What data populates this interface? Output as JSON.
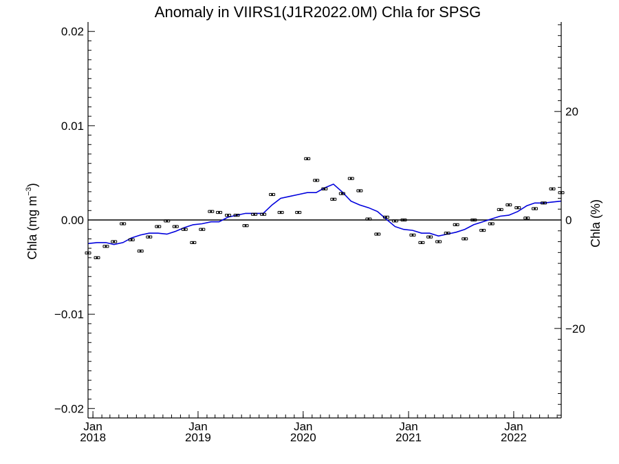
{
  "chart_data": {
    "type": "scatter",
    "title": "Anomaly in VIIRS1(J1R2022.0M) Chla for SPSG",
    "ylabel_left": {
      "text": "Chla (mg m",
      "sup": "−3",
      "close": ")"
    },
    "ylabel_right": "Chla (%)",
    "x_start": "2017-12-15",
    "x_end": "2022-06-15",
    "ylim": [
      -0.021,
      0.021
    ],
    "ylim_right": [
      -36.5,
      36.5
    ],
    "y_ticks": [
      {
        "value": -0.02,
        "label": "−0.02"
      },
      {
        "value": -0.01,
        "label": "−0.01"
      },
      {
        "value": 0.0,
        "label": "0.00"
      },
      {
        "value": 0.01,
        "label": "0.01"
      },
      {
        "value": 0.02,
        "label": "0.02"
      }
    ],
    "y_ticks_right": [
      {
        "value": -20,
        "label": "−20"
      },
      {
        "value": 0,
        "label": "0"
      },
      {
        "value": 20,
        "label": "20"
      }
    ],
    "x_ticks": [
      {
        "date": "2018-01-01",
        "month": "Jan",
        "year": "2018"
      },
      {
        "date": "2019-01-01",
        "month": "Jan",
        "year": "2019"
      },
      {
        "date": "2020-01-01",
        "month": "Jan",
        "year": "2020"
      },
      {
        "date": "2021-01-01",
        "month": "Jan",
        "year": "2021"
      },
      {
        "date": "2022-01-01",
        "month": "Jan",
        "year": "2022"
      }
    ],
    "zero_line": 0.0,
    "points": [
      {
        "date": "2017-12-15",
        "y": -0.0035
      },
      {
        "date": "2018-01-15",
        "y": -0.004
      },
      {
        "date": "2018-02-15",
        "y": -0.0028
      },
      {
        "date": "2018-03-15",
        "y": -0.0023
      },
      {
        "date": "2018-04-15",
        "y": -0.0004
      },
      {
        "date": "2018-05-15",
        "y": -0.0021
      },
      {
        "date": "2018-06-15",
        "y": -0.0033
      },
      {
        "date": "2018-07-15",
        "y": -0.0018
      },
      {
        "date": "2018-08-15",
        "y": -0.0007
      },
      {
        "date": "2018-09-15",
        "y": -0.0001
      },
      {
        "date": "2018-10-15",
        "y": -0.0007
      },
      {
        "date": "2018-11-15",
        "y": -0.001
      },
      {
        "date": "2018-12-15",
        "y": -0.0024
      },
      {
        "date": "2019-01-15",
        "y": -0.001
      },
      {
        "date": "2019-02-15",
        "y": 0.0009
      },
      {
        "date": "2019-03-15",
        "y": 0.0008
      },
      {
        "date": "2019-04-15",
        "y": 0.0005
      },
      {
        "date": "2019-05-15",
        "y": 0.0005
      },
      {
        "date": "2019-06-15",
        "y": -0.0006
      },
      {
        "date": "2019-07-15",
        "y": 0.0006
      },
      {
        "date": "2019-08-15",
        "y": 0.0006
      },
      {
        "date": "2019-09-15",
        "y": 0.0027
      },
      {
        "date": "2019-10-15",
        "y": 0.0008
      },
      {
        "date": "2019-12-15",
        "y": 0.0008
      },
      {
        "date": "2020-01-15",
        "y": 0.0065
      },
      {
        "date": "2020-02-15",
        "y": 0.0042
      },
      {
        "date": "2020-03-15",
        "y": 0.0033
      },
      {
        "date": "2020-04-15",
        "y": 0.0022
      },
      {
        "date": "2020-05-15",
        "y": 0.0028
      },
      {
        "date": "2020-06-15",
        "y": 0.0044
      },
      {
        "date": "2020-07-15",
        "y": 0.0031
      },
      {
        "date": "2020-08-15",
        "y": 0.0001
      },
      {
        "date": "2020-09-15",
        "y": -0.0015
      },
      {
        "date": "2020-10-15",
        "y": 0.0003
      },
      {
        "date": "2020-11-15",
        "y": -0.0001
      },
      {
        "date": "2020-12-15",
        "y": 0.0
      },
      {
        "date": "2021-01-15",
        "y": -0.0016
      },
      {
        "date": "2021-02-15",
        "y": -0.0024
      },
      {
        "date": "2021-03-15",
        "y": -0.0018
      },
      {
        "date": "2021-04-15",
        "y": -0.0023
      },
      {
        "date": "2021-05-15",
        "y": -0.0014
      },
      {
        "date": "2021-06-15",
        "y": -0.0005
      },
      {
        "date": "2021-07-15",
        "y": -0.002
      },
      {
        "date": "2021-08-15",
        "y": 0.0
      },
      {
        "date": "2021-09-15",
        "y": -0.0011
      },
      {
        "date": "2021-10-15",
        "y": -0.0004
      },
      {
        "date": "2021-11-15",
        "y": 0.0011
      },
      {
        "date": "2021-12-15",
        "y": 0.0016
      },
      {
        "date": "2022-01-15",
        "y": 0.0013
      },
      {
        "date": "2022-02-15",
        "y": 0.0002
      },
      {
        "date": "2022-03-15",
        "y": 0.0012
      },
      {
        "date": "2022-04-15",
        "y": 0.0018
      },
      {
        "date": "2022-05-15",
        "y": 0.0033
      },
      {
        "date": "2022-06-15",
        "y": 0.0029
      }
    ],
    "trend_line": [
      {
        "date": "2017-12-15",
        "y": -0.0025
      },
      {
        "date": "2018-01-15",
        "y": -0.0024
      },
      {
        "date": "2018-02-15",
        "y": -0.0024
      },
      {
        "date": "2018-03-15",
        "y": -0.0026
      },
      {
        "date": "2018-04-15",
        "y": -0.0024
      },
      {
        "date": "2018-05-15",
        "y": -0.0019
      },
      {
        "date": "2018-06-15",
        "y": -0.0016
      },
      {
        "date": "2018-07-15",
        "y": -0.0014
      },
      {
        "date": "2018-08-15",
        "y": -0.0014
      },
      {
        "date": "2018-09-15",
        "y": -0.0015
      },
      {
        "date": "2018-10-15",
        "y": -0.0012
      },
      {
        "date": "2018-11-15",
        "y": -0.0008
      },
      {
        "date": "2018-12-15",
        "y": -0.0005
      },
      {
        "date": "2019-01-15",
        "y": -0.0004
      },
      {
        "date": "2019-02-15",
        "y": -0.0002
      },
      {
        "date": "2019-03-15",
        "y": -0.0002
      },
      {
        "date": "2019-04-15",
        "y": 0.0003
      },
      {
        "date": "2019-05-15",
        "y": 0.0005
      },
      {
        "date": "2019-06-15",
        "y": 0.0007
      },
      {
        "date": "2019-07-15",
        "y": 0.0007
      },
      {
        "date": "2019-08-15",
        "y": 0.0007
      },
      {
        "date": "2019-09-15",
        "y": 0.0016
      },
      {
        "date": "2019-10-15",
        "y": 0.0023
      },
      {
        "date": "2019-11-15",
        "y": 0.0025
      },
      {
        "date": "2019-12-15",
        "y": 0.0027
      },
      {
        "date": "2020-01-15",
        "y": 0.0029
      },
      {
        "date": "2020-02-15",
        "y": 0.0029
      },
      {
        "date": "2020-03-15",
        "y": 0.0034
      },
      {
        "date": "2020-04-15",
        "y": 0.0038
      },
      {
        "date": "2020-05-15",
        "y": 0.003
      },
      {
        "date": "2020-06-15",
        "y": 0.002
      },
      {
        "date": "2020-07-15",
        "y": 0.0016
      },
      {
        "date": "2020-08-15",
        "y": 0.0013
      },
      {
        "date": "2020-09-15",
        "y": 0.0009
      },
      {
        "date": "2020-10-15",
        "y": 0.0001
      },
      {
        "date": "2020-11-15",
        "y": -0.0007
      },
      {
        "date": "2020-12-15",
        "y": -0.001
      },
      {
        "date": "2021-01-15",
        "y": -0.0011
      },
      {
        "date": "2021-02-15",
        "y": -0.0014
      },
      {
        "date": "2021-03-15",
        "y": -0.0014
      },
      {
        "date": "2021-04-15",
        "y": -0.0017
      },
      {
        "date": "2021-05-15",
        "y": -0.0015
      },
      {
        "date": "2021-06-15",
        "y": -0.0013
      },
      {
        "date": "2021-07-15",
        "y": -0.001
      },
      {
        "date": "2021-08-15",
        "y": -0.0005
      },
      {
        "date": "2021-09-15",
        "y": -0.0002
      },
      {
        "date": "2021-10-15",
        "y": 0.0001
      },
      {
        "date": "2021-11-15",
        "y": 0.0004
      },
      {
        "date": "2021-12-15",
        "y": 0.0005
      },
      {
        "date": "2022-01-15",
        "y": 0.0009
      },
      {
        "date": "2022-02-15",
        "y": 0.0015
      },
      {
        "date": "2022-03-15",
        "y": 0.0018
      },
      {
        "date": "2022-04-15",
        "y": 0.0018
      },
      {
        "date": "2022-05-15",
        "y": 0.0019
      },
      {
        "date": "2022-06-15",
        "y": 0.002
      }
    ],
    "colors": {
      "points": "#000000",
      "trend": "#0000dd",
      "axes": "#000000"
    },
    "grid": false,
    "legend": "none"
  }
}
